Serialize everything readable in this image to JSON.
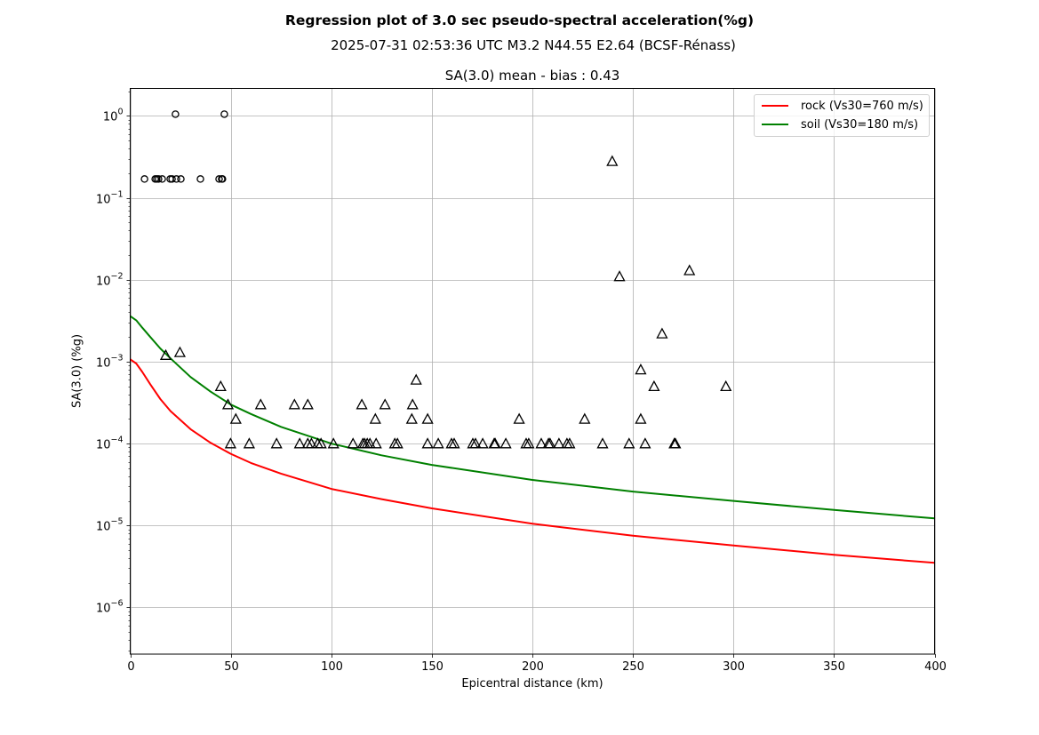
{
  "chart_data": {
    "type": "scatter",
    "title": "Regression plot of 3.0 sec pseudo-spectral acceleration(%g)",
    "subtitle": "2025-07-31 02:53:36 UTC M3.2 N44.55 E2.64 (BCSF-Rénass)",
    "axes_title": "SA(3.0) mean - bias : 0.43",
    "xlabel": "Epicentral distance (km)",
    "ylabel": "SA(3.0) (%g)",
    "xlim": [
      0,
      400
    ],
    "ylim_log10": [
      -6.57,
      0.336
    ],
    "yscale": "log",
    "grid": true,
    "legend_position": "top-right",
    "x_ticks": [
      0,
      50,
      100,
      150,
      200,
      250,
      300,
      350,
      400
    ],
    "y_ticks": [
      {
        "value": 1,
        "base": "10",
        "exp": "0"
      },
      {
        "value": 0.1,
        "base": "10",
        "exp": "−1"
      },
      {
        "value": 0.01,
        "base": "10",
        "exp": "−2"
      },
      {
        "value": 0.001,
        "base": "10",
        "exp": "−3"
      },
      {
        "value": 0.0001,
        "base": "10",
        "exp": "−4"
      },
      {
        "value": 1e-05,
        "base": "10",
        "exp": "−5"
      },
      {
        "value": 1e-06,
        "base": "10",
        "exp": "−6"
      }
    ],
    "series": [
      {
        "name": "rock (Vs30=760 m/s)",
        "kind": "line",
        "color": "#ff0000",
        "x": [
          0,
          3,
          6,
          10,
          15,
          20,
          30,
          40,
          50,
          60,
          75,
          100,
          125,
          150,
          200,
          250,
          300,
          350,
          400
        ],
        "y": [
          0.00107,
          0.00095,
          0.00075,
          0.00053,
          0.00035,
          0.00025,
          0.00015,
          0.000102,
          7.5e-05,
          5.8e-05,
          4.3e-05,
          2.8e-05,
          2.1e-05,
          1.62e-05,
          1.05e-05,
          7.5e-06,
          5.7e-06,
          4.4e-06,
          3.5e-06
        ]
      },
      {
        "name": "soil (Vs30=180 m/s)",
        "kind": "line",
        "color": "#008000",
        "x": [
          0,
          3,
          6,
          10,
          15,
          20,
          30,
          40,
          50,
          60,
          75,
          100,
          125,
          150,
          200,
          250,
          300,
          350,
          400
        ],
        "y": [
          0.0036,
          0.0032,
          0.0026,
          0.002,
          0.00145,
          0.0011,
          0.00065,
          0.00043,
          0.0003,
          0.00023,
          0.00016,
          0.0001,
          7.2e-05,
          5.5e-05,
          3.6e-05,
          2.6e-05,
          2e-05,
          1.55e-05,
          1.22e-05
        ]
      },
      {
        "name": "stations-circle",
        "kind": "marker",
        "marker": "circle",
        "color": "#000000",
        "x": [
          7.1,
          12.4,
          13.2,
          14.1,
          15.9,
          19.9,
          20.8,
          23.0,
          25.2,
          34.9,
          44.2,
          45.5,
          45.9,
          22.5,
          46.8
        ],
        "y": [
          0.17,
          0.17,
          0.17,
          0.17,
          0.17,
          0.17,
          0.17,
          0.17,
          0.17,
          0.17,
          0.17,
          0.17,
          0.17,
          1.05,
          1.05
        ]
      },
      {
        "name": "stations-triangle",
        "kind": "marker",
        "marker": "triangle",
        "color": "#000000",
        "x": [
          49.9,
          59.2,
          72.8,
          84.3,
          88.3,
          90.1,
          93.2,
          94.9,
          101.1,
          110.8,
          115.7,
          116.6,
          117.9,
          119.2,
          122.3,
          131.6,
          132.9,
          147.9,
          153.2,
          159.8,
          161.1,
          170.4,
          171.7,
          175.3,
          181.0,
          181.5,
          186.8,
          196.9,
          198.2,
          204.4,
          208.0,
          208.8,
          213.2,
          217.2,
          218.5,
          234.9,
          248.1,
          256.1,
          270.6,
          271.1,
          52.5,
          121.9,
          140.0,
          147.9,
          193.4,
          226.0,
          253.9,
          48.6,
          64.9,
          81.7,
          88.3,
          115.2,
          126.7,
          140.4,
          45.0,
          260.5,
          296.2,
          142.2,
          253.9,
          17.7,
          24.7,
          264.5,
          243.3,
          278.1,
          239.7
        ],
        "y": [
          0.0001,
          0.0001,
          0.0001,
          0.0001,
          0.0001,
          0.0001,
          0.0001,
          0.0001,
          0.0001,
          0.0001,
          0.0001,
          0.0001,
          0.0001,
          0.0001,
          0.0001,
          0.0001,
          0.0001,
          0.0001,
          0.0001,
          0.0001,
          0.0001,
          0.0001,
          0.0001,
          0.0001,
          0.0001,
          0.0001,
          0.0001,
          0.0001,
          0.0001,
          0.0001,
          0.0001,
          0.0001,
          0.0001,
          0.0001,
          0.0001,
          0.0001,
          0.0001,
          0.0001,
          0.0001,
          0.0001,
          0.0002,
          0.0002,
          0.0002,
          0.0002,
          0.0002,
          0.0002,
          0.0002,
          0.0003,
          0.0003,
          0.0003,
          0.0003,
          0.0003,
          0.0003,
          0.0003,
          0.0005,
          0.0005,
          0.0005,
          0.0006,
          0.0008,
          0.0012,
          0.0013,
          0.0022,
          0.011,
          0.013,
          0.28
        ]
      }
    ]
  }
}
